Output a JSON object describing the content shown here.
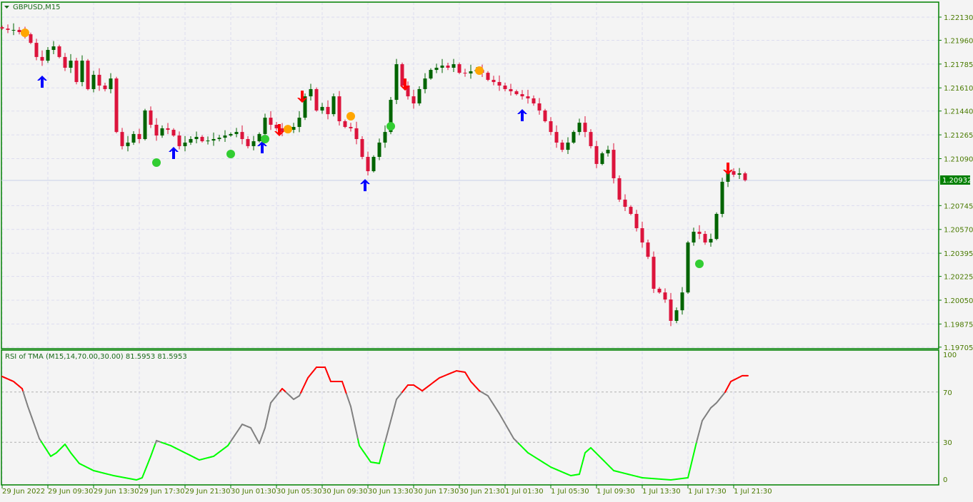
{
  "window": {
    "symbol_title": "GBPUSD,M15",
    "menu_icon": "triangle-down-icon"
  },
  "colors": {
    "background": "#f4f4f4",
    "frame": "#008000",
    "grid": "#dcdcf0",
    "bull": "#006400",
    "bear": "#dc143c",
    "rsi_high": "#ff0000",
    "rsi_mid": "#808080",
    "rsi_low": "#00ff00",
    "current_price_bg": "#008000",
    "arrow_up": "#0000ff",
    "arrow_down": "#ff0000",
    "dot_orange": "#ffa500",
    "dot_green": "#32cd32"
  },
  "price_axis": {
    "labels": [
      "1.22130",
      "1.21960",
      "1.21785",
      "1.21610",
      "1.21440",
      "1.21265",
      "1.21090",
      "1.20745",
      "1.20570",
      "1.20395",
      "1.20225",
      "1.20050",
      "1.19875",
      "1.19705"
    ],
    "current_price": "1.20932"
  },
  "time_axis": {
    "labels": [
      "29 Jun 2022",
      "29 Jun 09:30",
      "29 Jun 13:30",
      "29 Jun 17:30",
      "29 Jun 21:30",
      "30 Jun 01:30",
      "30 Jun 05:30",
      "30 Jun 09:30",
      "30 Jun 13:30",
      "30 Jun 17:30",
      "30 Jun 21:30",
      "1 Jul 01:30",
      "1 Jul 05:30",
      "1 Jul 09:30",
      "1 Jul 13:30",
      "1 Jul 17:30",
      "1 Jul 21:30"
    ]
  },
  "indicator": {
    "label": "RSI of TMA (M15,14,70.00,30.00) 81.5953 81.5953",
    "levels": [
      "100",
      "70",
      "30",
      "0"
    ],
    "upper": 70,
    "lower": 30
  },
  "chart_data": [
    {
      "type": "candlestick",
      "title": "GBPUSD,M15",
      "ylim": [
        1.19705,
        1.2213
      ],
      "grid": true,
      "closes": [
        1.22046,
        1.22036,
        1.22036,
        1.2202,
        1.22004,
        1.21941,
        1.21837,
        1.2181,
        1.21889,
        1.21915,
        1.21837,
        1.21758,
        1.2181,
        1.21653,
        1.2181,
        1.21601,
        1.21706,
        1.21627,
        1.21601,
        1.21679,
        1.21286,
        1.21182,
        1.21208,
        1.21271,
        1.21234,
        1.21444,
        1.21339,
        1.2126,
        1.21313,
        1.21302,
        1.2126,
        1.21182,
        1.21208,
        1.21234,
        1.2125,
        1.21218,
        1.21223,
        1.21234,
        1.21244,
        1.2126,
        1.21271,
        1.21286,
        1.21234,
        1.21182,
        1.21218,
        1.21271,
        1.21391,
        1.21339,
        1.21313,
        1.21286,
        1.21302,
        1.21323,
        1.21391,
        1.21548,
        1.21601,
        1.21444,
        1.2147,
        1.21417,
        1.21548,
        1.21365,
        1.21323,
        1.21313,
        1.21234,
        1.21103,
        1.20998,
        1.21103,
        1.21208,
        1.21286,
        1.21522,
        1.21784,
        1.21627,
        1.21548,
        1.21496,
        1.21601,
        1.21679,
        1.21742,
        1.21758,
        1.21774,
        1.21758,
        1.21784,
        1.21721,
        1.21716,
        1.21732,
        1.21742,
        1.21721,
        1.21669,
        1.21653,
        1.21627,
        1.21601,
        1.21585,
        1.21564,
        1.21548,
        1.21533,
        1.21496,
        1.21444,
        1.21365,
        1.21286,
        1.21208,
        1.21155,
        1.21208,
        1.21286,
        1.21354,
        1.21286,
        1.21182,
        1.21051,
        1.21129,
        1.21155,
        1.20946,
        1.20789,
        1.20736,
        1.20684,
        1.20579,
        1.20474,
        1.20369,
        1.20134,
        1.20107,
        1.20055,
        1.19898,
        1.19976,
        1.20107,
        1.20474,
        1.20553,
        1.20537,
        1.20474,
        1.205,
        1.20684,
        1.2092,
        1.20998,
        1.20972,
        1.20982,
        1.20932
      ],
      "signals": [
        {
          "type": "arrow-up",
          "time": "29 Jun 09:00",
          "price": 1.21653
        },
        {
          "type": "arrow-up",
          "time": "29 Jun 20:30",
          "price": 1.21129
        },
        {
          "type": "arrow-up",
          "time": "30 Jun 04:15",
          "price": 1.21171
        },
        {
          "type": "arrow-up",
          "time": "30 Jun 13:15",
          "price": 1.20893
        },
        {
          "type": "arrow-up",
          "time": "1 Jul 03:00",
          "price": 1.21407
        },
        {
          "type": "arrow-down",
          "time": "30 Jun 05:45",
          "price": 1.21302
        },
        {
          "type": "arrow-down",
          "time": "30 Jun 07:45",
          "price": 1.21548
        },
        {
          "type": "arrow-down",
          "time": "30 Jun 16:45",
          "price": 1.21637
        },
        {
          "type": "arrow-down",
          "time": "1 Jul 21:00",
          "price": 1.21019
        },
        {
          "type": "dot-orange",
          "time": "29 Jun 07:30",
          "price": 1.22015
        },
        {
          "type": "dot-orange",
          "time": "30 Jun 06:30",
          "price": 1.21307
        },
        {
          "type": "dot-orange",
          "time": "30 Jun 12:00",
          "price": 1.21402
        },
        {
          "type": "dot-orange",
          "time": "30 Jun 23:15",
          "price": 1.21737
        },
        {
          "type": "dot-green",
          "time": "29 Jun 19:00",
          "price": 1.21061
        },
        {
          "type": "dot-green",
          "time": "30 Jun 01:30",
          "price": 1.21124
        },
        {
          "type": "dot-green",
          "time": "30 Jun 04:30",
          "price": 1.21234
        },
        {
          "type": "dot-green",
          "time": "30 Jun 15:30",
          "price": 1.21328
        },
        {
          "type": "dot-green",
          "time": "1 Jul 18:30",
          "price": 1.20317
        }
      ]
    },
    {
      "type": "line",
      "title": "RSI of TMA (M15,14,70.00,30.00) 81.5953 81.5953",
      "ylim": [
        0,
        100
      ],
      "levels": [
        70,
        30
      ],
      "points": [
        [
          "29 Jun 05:30",
          82.4
        ],
        [
          "29 Jun 06:30",
          78.4
        ],
        [
          "29 Jun 07:15",
          72.7
        ],
        [
          "29 Jun 07:45",
          58.5
        ],
        [
          "29 Jun 08:45",
          33
        ],
        [
          "29 Jun 09:45",
          18.8
        ],
        [
          "29 Jun 10:15",
          21.6
        ],
        [
          "29 Jun 11:00",
          28.4
        ],
        [
          "29 Jun 11:30",
          21.6
        ],
        [
          "29 Jun 12:15",
          13.1
        ],
        [
          "29 Jun 13:30",
          7.4
        ],
        [
          "29 Jun 15:15",
          3.4
        ],
        [
          "29 Jun 17:15",
          0
        ],
        [
          "29 Jun 17:45",
          1.7
        ],
        [
          "29 Jun 18:30",
          18.8
        ],
        [
          "29 Jun 19:00",
          31.3
        ],
        [
          "29 Jun 20:15",
          27.3
        ],
        [
          "29 Jun 21:30",
          21.6
        ],
        [
          "29 Jun 22:45",
          15.9
        ],
        [
          "30 Jun 00:00",
          18.8
        ],
        [
          "30 Jun 01:15",
          27.3
        ],
        [
          "30 Jun 02:30",
          44.3
        ],
        [
          "30 Jun 03:15",
          41.5
        ],
        [
          "30 Jun 04:00",
          29
        ],
        [
          "30 Jun 04:30",
          41.5
        ],
        [
          "30 Jun 05:00",
          61.4
        ],
        [
          "30 Jun 06:00",
          72.7
        ],
        [
          "30 Jun 07:00",
          64.2
        ],
        [
          "30 Jun 07:30",
          67
        ],
        [
          "30 Jun 08:15",
          81.3
        ],
        [
          "30 Jun 09:00",
          89.8
        ],
        [
          "30 Jun 09:45",
          89.8
        ],
        [
          "30 Jun 10:15",
          78.4
        ],
        [
          "30 Jun 11:15",
          78.4
        ],
        [
          "30 Jun 12:00",
          58.5
        ],
        [
          "30 Jun 12:45",
          27.3
        ],
        [
          "30 Jun 13:45",
          14.2
        ],
        [
          "30 Jun 14:30",
          13.1
        ],
        [
          "30 Jun 15:00",
          30.1
        ],
        [
          "30 Jun 16:00",
          64.2
        ],
        [
          "30 Jun 17:00",
          75.6
        ],
        [
          "30 Jun 17:30",
          75.6
        ],
        [
          "30 Jun 18:15",
          71
        ],
        [
          "30 Jun 18:45",
          74.4
        ],
        [
          "30 Jun 19:45",
          81.3
        ],
        [
          "30 Jun 21:15",
          86.9
        ],
        [
          "30 Jun 22:00",
          85.8
        ],
        [
          "30 Jun 22:30",
          78.4
        ],
        [
          "30 Jun 23:15",
          71
        ],
        [
          "1 Jul 00:00",
          67
        ],
        [
          "1 Jul 01:00",
          52.8
        ],
        [
          "1 Jul 02:15",
          33
        ],
        [
          "1 Jul 03:30",
          21.6
        ],
        [
          "1 Jul 05:30",
          10.2
        ],
        [
          "1 Jul 07:15",
          3.4
        ],
        [
          "1 Jul 08:00",
          4.5
        ],
        [
          "1 Jul 08:30",
          21.6
        ],
        [
          "1 Jul 09:00",
          25.6
        ],
        [
          "1 Jul 09:45",
          18.8
        ],
        [
          "1 Jul 11:00",
          7.4
        ],
        [
          "1 Jul 13:30",
          1.7
        ],
        [
          "1 Jul 16:00",
          0
        ],
        [
          "1 Jul 17:30",
          1.7
        ],
        [
          "1 Jul 18:15",
          30.1
        ],
        [
          "1 Jul 18:45",
          47.2
        ],
        [
          "1 Jul 19:30",
          57.4
        ],
        [
          "1 Jul 20:00",
          61.4
        ],
        [
          "1 Jul 20:45",
          69.9
        ],
        [
          "1 Jul 21:15",
          78.4
        ],
        [
          "1 Jul 22:15",
          83
        ],
        [
          "1 Jul 22:45",
          83
        ]
      ]
    }
  ]
}
